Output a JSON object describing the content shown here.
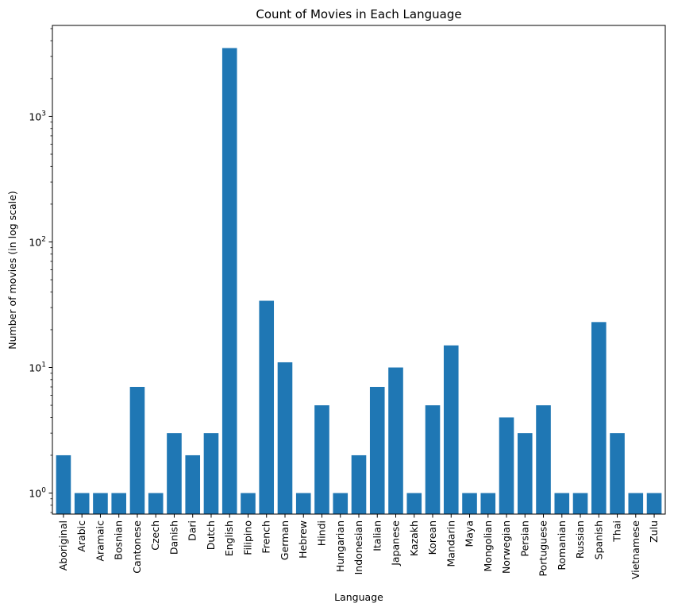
{
  "chart_data": {
    "type": "bar",
    "title": "Count of Movies in Each Language",
    "xlabel": "Language",
    "ylabel": "Number of movies (in log scale)",
    "yscale": "log",
    "ylim": [
      0.68,
      5300
    ],
    "yticks": [
      {
        "value": 1,
        "base": "10",
        "exp": "0"
      },
      {
        "value": 10,
        "base": "10",
        "exp": "1"
      },
      {
        "value": 100,
        "base": "10",
        "exp": "2"
      },
      {
        "value": 1000,
        "base": "10",
        "exp": "3"
      }
    ],
    "grid": false,
    "bar_color": "#1f77b4",
    "categories": [
      "Aboriginal",
      "Arabic",
      "Aramaic",
      "Bosnian",
      "Cantonese",
      "Czech",
      "Danish",
      "Dari",
      "Dutch",
      "English",
      "Filipino",
      "French",
      "German",
      "Hebrew",
      "Hindi",
      "Hungarian",
      "Indonesian",
      "Italian",
      "Japanese",
      "Kazakh",
      "Korean",
      "Mandarin",
      "Maya",
      "Mongolian",
      "Norwegian",
      "Persian",
      "Portuguese",
      "Romanian",
      "Russian",
      "Spanish",
      "Thai",
      "Vietnamese",
      "Zulu"
    ],
    "values": [
      2,
      1,
      1,
      1,
      7,
      1,
      3,
      2,
      3,
      3500,
      1,
      34,
      11,
      1,
      5,
      1,
      2,
      7,
      10,
      1,
      5,
      15,
      1,
      1,
      4,
      3,
      5,
      1,
      1,
      23,
      3,
      1,
      1
    ]
  }
}
